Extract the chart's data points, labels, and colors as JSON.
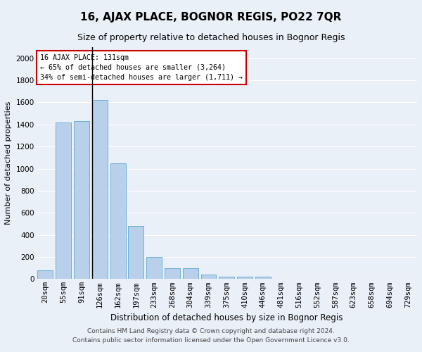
{
  "title": "16, AJAX PLACE, BOGNOR REGIS, PO22 7QR",
  "subtitle": "Size of property relative to detached houses in Bognor Regis",
  "xlabel": "Distribution of detached houses by size in Bognor Regis",
  "ylabel": "Number of detached properties",
  "footer_line1": "Contains HM Land Registry data © Crown copyright and database right 2024.",
  "footer_line2": "Contains public sector information licensed under the Open Government Licence v3.0.",
  "annotation_line1": "16 AJAX PLACE: 131sqm",
  "annotation_line2": "← 65% of detached houses are smaller (3,264)",
  "annotation_line3": "34% of semi-detached houses are larger (1,711) →",
  "bar_labels": [
    "20sqm",
    "55sqm",
    "91sqm",
    "126sqm",
    "162sqm",
    "197sqm",
    "233sqm",
    "268sqm",
    "304sqm",
    "339sqm",
    "375sqm",
    "410sqm",
    "446sqm",
    "481sqm",
    "516sqm",
    "552sqm",
    "587sqm",
    "623sqm",
    "658sqm",
    "694sqm",
    "729sqm"
  ],
  "bar_values": [
    80,
    1420,
    1430,
    1620,
    1045,
    480,
    200,
    100,
    100,
    38,
    25,
    20,
    20,
    0,
    0,
    0,
    0,
    0,
    0,
    0,
    0
  ],
  "bar_color": "#b8d0ea",
  "bar_edge_color": "#6aaed6",
  "highlight_index": 3,
  "highlight_line_color": "#000000",
  "background_color": "#eaf0f8",
  "grid_color": "#ffffff",
  "ylim": [
    0,
    2100
  ],
  "yticks": [
    0,
    200,
    400,
    600,
    800,
    1000,
    1200,
    1400,
    1600,
    1800,
    2000
  ],
  "annotation_box_color": "#ffffff",
  "annotation_border_color": "#cc0000",
  "title_fontsize": 11,
  "subtitle_fontsize": 9,
  "xlabel_fontsize": 8.5,
  "ylabel_fontsize": 8,
  "tick_fontsize": 7.5,
  "footer_fontsize": 6.5
}
